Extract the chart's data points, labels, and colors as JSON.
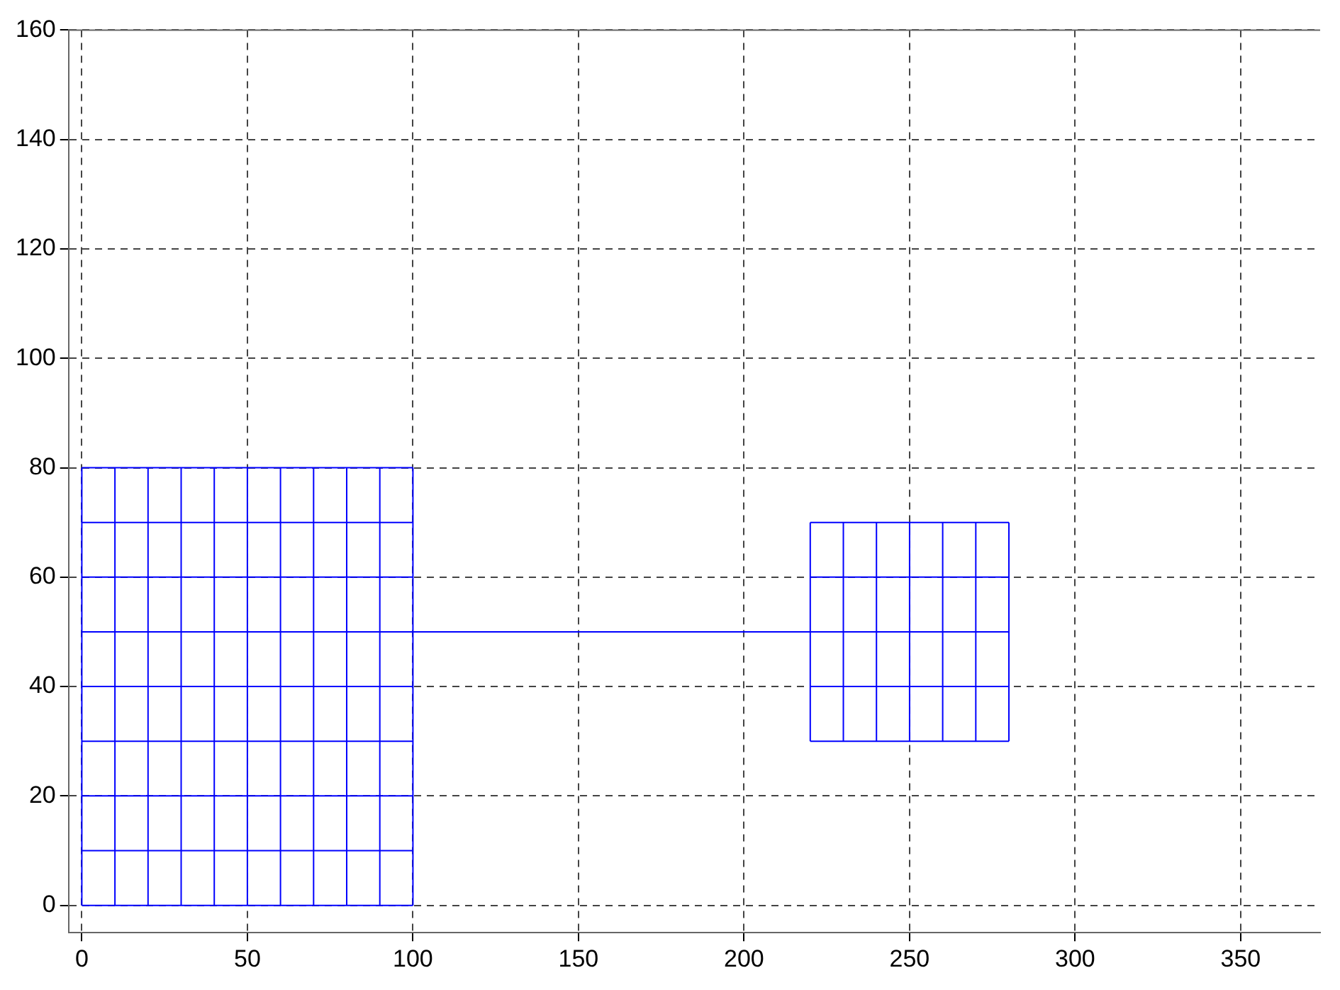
{
  "chart_data": {
    "type": "line",
    "xlim": [
      -4,
      374
    ],
    "ylim": [
      -5,
      160
    ],
    "xticks": [
      0,
      50,
      100,
      150,
      200,
      250,
      300,
      350
    ],
    "yticks": [
      0,
      20,
      40,
      60,
      80,
      100,
      120,
      140,
      160
    ],
    "grid": true,
    "legend": false,
    "marker": "none",
    "line_style": "solid",
    "series": [
      {
        "color": "#0000ff",
        "x": [
          0,
          0
        ],
        "values": [
          0,
          80
        ]
      },
      {
        "color": "#0000ff",
        "x": [
          10,
          10
        ],
        "values": [
          0,
          80
        ]
      },
      {
        "color": "#0000ff",
        "x": [
          20,
          20
        ],
        "values": [
          0,
          80
        ]
      },
      {
        "color": "#0000ff",
        "x": [
          30,
          30
        ],
        "values": [
          0,
          80
        ]
      },
      {
        "color": "#0000ff",
        "x": [
          40,
          40
        ],
        "values": [
          0,
          80
        ]
      },
      {
        "color": "#0000ff",
        "x": [
          50,
          50
        ],
        "values": [
          0,
          80
        ]
      },
      {
        "color": "#0000ff",
        "x": [
          60,
          60
        ],
        "values": [
          0,
          80
        ]
      },
      {
        "color": "#0000ff",
        "x": [
          70,
          70
        ],
        "values": [
          0,
          80
        ]
      },
      {
        "color": "#0000ff",
        "x": [
          80,
          80
        ],
        "values": [
          0,
          80
        ]
      },
      {
        "color": "#0000ff",
        "x": [
          90,
          90
        ],
        "values": [
          0,
          80
        ]
      },
      {
        "color": "#0000ff",
        "x": [
          100,
          100
        ],
        "values": [
          0,
          80
        ]
      },
      {
        "color": "#0000ff",
        "x": [
          0,
          100
        ],
        "values": [
          0,
          0
        ]
      },
      {
        "color": "#0000ff",
        "x": [
          0,
          100
        ],
        "values": [
          10,
          10
        ]
      },
      {
        "color": "#0000ff",
        "x": [
          0,
          100
        ],
        "values": [
          20,
          20
        ]
      },
      {
        "color": "#0000ff",
        "x": [
          0,
          100
        ],
        "values": [
          30,
          30
        ]
      },
      {
        "color": "#0000ff",
        "x": [
          0,
          100
        ],
        "values": [
          40,
          40
        ]
      },
      {
        "color": "#0000ff",
        "x": [
          0,
          100
        ],
        "values": [
          60,
          60
        ]
      },
      {
        "color": "#0000ff",
        "x": [
          0,
          100
        ],
        "values": [
          70,
          70
        ]
      },
      {
        "color": "#0000ff",
        "x": [
          0,
          100
        ],
        "values": [
          80,
          80
        ]
      },
      {
        "color": "#0000ff",
        "x": [
          0,
          100,
          220,
          280
        ],
        "values": [
          50,
          50,
          50,
          50
        ]
      },
      {
        "color": "#0000ff",
        "x": [
          220,
          220
        ],
        "values": [
          30,
          70
        ]
      },
      {
        "color": "#0000ff",
        "x": [
          230,
          230
        ],
        "values": [
          30,
          70
        ]
      },
      {
        "color": "#0000ff",
        "x": [
          240,
          240
        ],
        "values": [
          30,
          70
        ]
      },
      {
        "color": "#0000ff",
        "x": [
          250,
          250
        ],
        "values": [
          30,
          70
        ]
      },
      {
        "color": "#0000ff",
        "x": [
          260,
          260
        ],
        "values": [
          30,
          70
        ]
      },
      {
        "color": "#0000ff",
        "x": [
          270,
          270
        ],
        "values": [
          30,
          70
        ]
      },
      {
        "color": "#0000ff",
        "x": [
          280,
          280
        ],
        "values": [
          30,
          70
        ]
      },
      {
        "color": "#0000ff",
        "x": [
          220,
          280
        ],
        "values": [
          30,
          30
        ]
      },
      {
        "color": "#0000ff",
        "x": [
          220,
          280
        ],
        "values": [
          40,
          40
        ]
      },
      {
        "color": "#0000ff",
        "x": [
          220,
          280
        ],
        "values": [
          60,
          60
        ]
      },
      {
        "color": "#0000ff",
        "x": [
          220,
          280
        ],
        "values": [
          70,
          70
        ]
      }
    ]
  }
}
